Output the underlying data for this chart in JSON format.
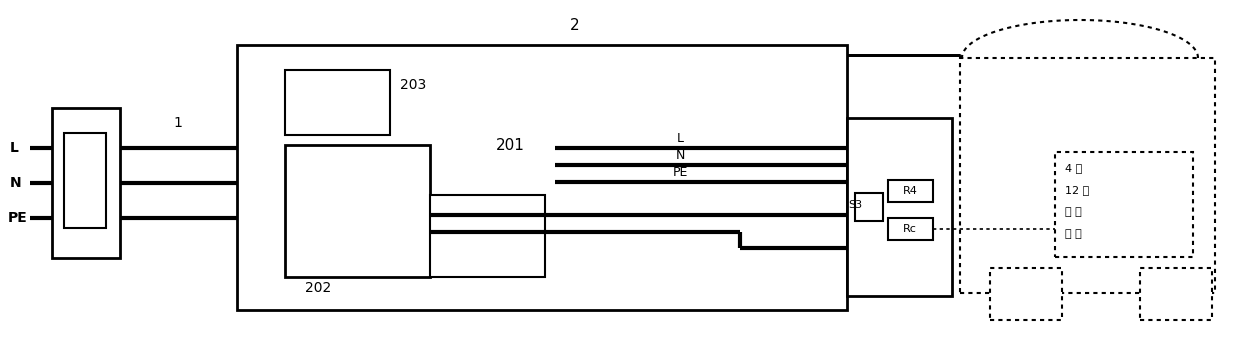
{
  "fig_width": 12.38,
  "fig_height": 3.46,
  "bg_color": "#ffffff",
  "lc": "#000000",
  "label_2": "2",
  "label_1": "1",
  "label_L": "L",
  "label_N": "N",
  "label_PE": "PE",
  "label_201": "201",
  "label_202": "202",
  "label_203": "203",
  "label_R4": "R4",
  "label_S3": "S3",
  "label_Rc": "Rc",
  "label_line_L": "L",
  "label_line_N": "N",
  "label_line_PE": "PE",
  "right_text": [
    "4 传",
    "12 制",
    "控 制",
    "装 置"
  ]
}
